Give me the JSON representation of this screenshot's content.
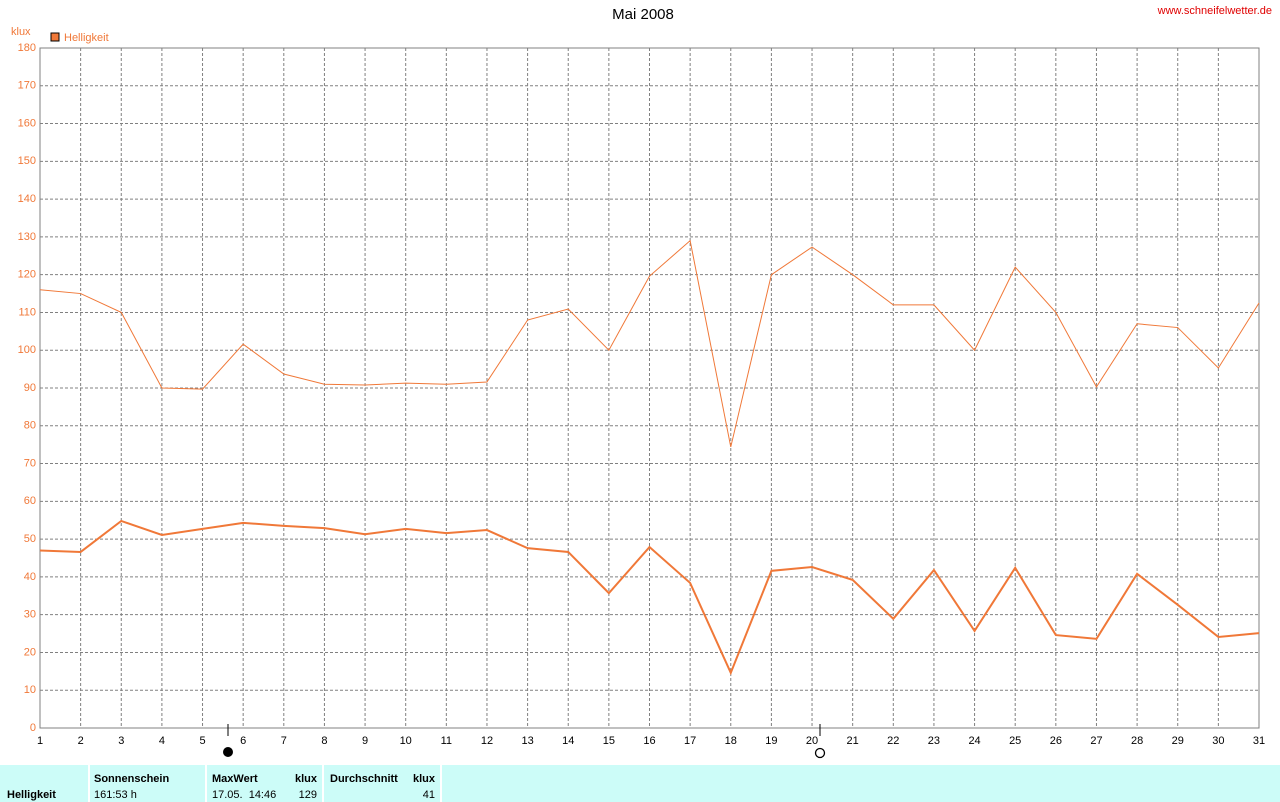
{
  "chart_data": {
    "type": "line",
    "title": "Mai 2008",
    "source": "www.schneifelwetter.de",
    "y_label": "klux",
    "legend": "Helligkeit",
    "color": "#f07838",
    "x": [
      1,
      2,
      3,
      4,
      5,
      6,
      7,
      8,
      9,
      10,
      11,
      12,
      13,
      14,
      15,
      16,
      17,
      18,
      19,
      20,
      21,
      22,
      23,
      24,
      25,
      26,
      27,
      28,
      29,
      30,
      31
    ],
    "series": [
      {
        "color": "#f07838",
        "width": 1,
        "values": [
          116,
          115,
          110,
          90,
          89.7,
          101.6,
          93.7,
          91,
          90.8,
          91.3,
          91,
          91.6,
          108,
          110.9,
          100,
          119.6,
          129,
          74.4,
          120,
          127.3,
          120,
          112,
          112,
          100,
          122,
          110,
          90.3,
          107,
          106,
          95.3,
          112.5
        ]
      },
      {
        "color": "#f07838",
        "width": 2,
        "values": [
          47,
          46.6,
          54.8,
          51.1,
          52.7,
          54.3,
          53.5,
          52.9,
          51.3,
          52.7,
          51.6,
          52.4,
          47.6,
          46.6,
          35.7,
          47.9,
          38.4,
          14.6,
          41.6,
          42.6,
          39.2,
          28.9,
          41.8,
          25.7,
          42.4,
          24.6,
          23.6,
          40.8,
          32.6,
          24.1,
          25.1
        ]
      }
    ],
    "xlim": [
      1,
      31
    ],
    "xticks": [
      1,
      2,
      3,
      4,
      5,
      6,
      7,
      8,
      9,
      10,
      11,
      12,
      13,
      14,
      15,
      16,
      17,
      18,
      19,
      20,
      21,
      22,
      23,
      24,
      25,
      26,
      27,
      28,
      29,
      30,
      31
    ],
    "ylim": [
      0,
      180
    ],
    "yticks": [
      0,
      10,
      20,
      30,
      40,
      50,
      60,
      70,
      80,
      90,
      100,
      110,
      120,
      130,
      140,
      150,
      160,
      170,
      180
    ],
    "grid": true
  },
  "footer": {
    "row_label": "Helligkeit",
    "sunshine_header": "Sonnenschein",
    "sunshine_value": "161:53 h",
    "max_header": "MaxWert",
    "max_unit": "klux",
    "max_time": "17.05.  14:46",
    "max_value": 129,
    "avg_header": "Durchschnitt",
    "avg_unit": "klux",
    "avg_value": 41
  }
}
